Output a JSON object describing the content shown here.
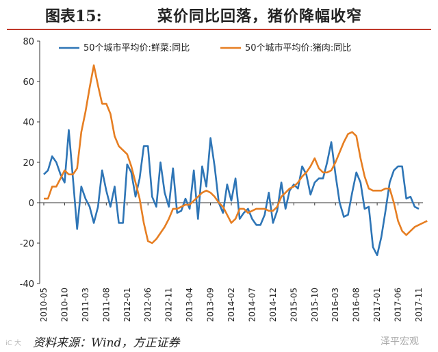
{
  "header": {
    "fig_label": "图表15:",
    "title": "菜价同比回落，猪价降幅收窄"
  },
  "footer": {
    "source": "资料来源：Wind，方正证券",
    "watermark": "泽平宏观",
    "watermark_left": "iC 大"
  },
  "colors": {
    "veg": "#2e75b6",
    "pork": "#e67e22",
    "axis": "#333333",
    "rule": "#c0392b"
  },
  "chart_data": {
    "type": "line",
    "title": "菜价同比回落，猪价降幅收窄",
    "ylim": [
      -40,
      80
    ],
    "yticks": [
      -40,
      -20,
      0,
      20,
      40,
      60,
      80
    ],
    "xtick_labels": [
      "2010-05",
      "2010-10",
      "2011-03",
      "2011-08",
      "2012-01",
      "2012-06",
      "2012-11",
      "2013-04",
      "2013-09",
      "2014-02",
      "2014-07",
      "2014-12",
      "2015-05",
      "2015-10",
      "2016-03",
      "2016-08",
      "2017-01",
      "2017-06",
      "2017-11"
    ],
    "xtick_index": [
      0,
      5,
      10,
      15,
      20,
      25,
      30,
      35,
      40,
      45,
      50,
      55,
      60,
      65,
      70,
      75,
      80,
      85,
      90
    ],
    "legend": [
      "50个城市平均价:鲜菜:同比",
      "50个城市平均价:猪肉:同比"
    ],
    "series": [
      {
        "name": "50个城市平均价:鲜菜:同比",
        "values": [
          14,
          16,
          23,
          20,
          14,
          10,
          36,
          12,
          -13,
          8,
          2,
          -2,
          -10,
          -2,
          16,
          6,
          -2,
          8,
          -10,
          -10,
          19,
          15,
          3,
          12,
          28,
          28,
          3,
          -2,
          20,
          5,
          -2,
          17,
          -5,
          -4,
          2,
          -3,
          16,
          -8,
          18,
          8,
          32,
          18,
          0,
          -5,
          9,
          1,
          12,
          -8,
          -5,
          -3,
          -8,
          -11,
          -11,
          -6,
          5,
          -10,
          -4,
          10,
          -3,
          6,
          9,
          7,
          18,
          14,
          4,
          10,
          12,
          12,
          20,
          30,
          14,
          0,
          -7,
          -6,
          5,
          15,
          10,
          -3,
          -2,
          -22,
          -26,
          -17,
          -4,
          10,
          16,
          18,
          18,
          2,
          3,
          -2,
          -3
        ]
      },
      {
        "name": "50个城市平均价:猪肉:同比",
        "values": [
          2,
          2,
          8,
          8,
          12,
          16,
          14,
          14,
          17,
          35,
          45,
          57,
          68,
          58,
          49,
          49,
          44,
          33,
          28,
          26,
          24,
          18,
          10,
          2,
          -10,
          -19,
          -20,
          -18,
          -15,
          -12,
          -8,
          -3,
          -3,
          -2,
          -1,
          -1,
          1,
          3,
          5,
          6,
          5,
          3,
          0,
          -2,
          -6,
          -10,
          -8,
          -3,
          -3,
          -5,
          -4,
          -3,
          -3,
          -3,
          -4,
          -4,
          -2,
          3,
          5,
          7,
          8,
          10,
          13,
          15,
          18,
          22,
          17,
          15,
          15,
          16,
          20,
          25,
          30,
          34,
          35,
          33,
          22,
          13,
          7,
          6,
          6,
          6,
          7,
          7,
          0,
          -9,
          -14,
          -16,
          -14,
          -12,
          -11,
          -10,
          -9
        ]
      }
    ]
  }
}
